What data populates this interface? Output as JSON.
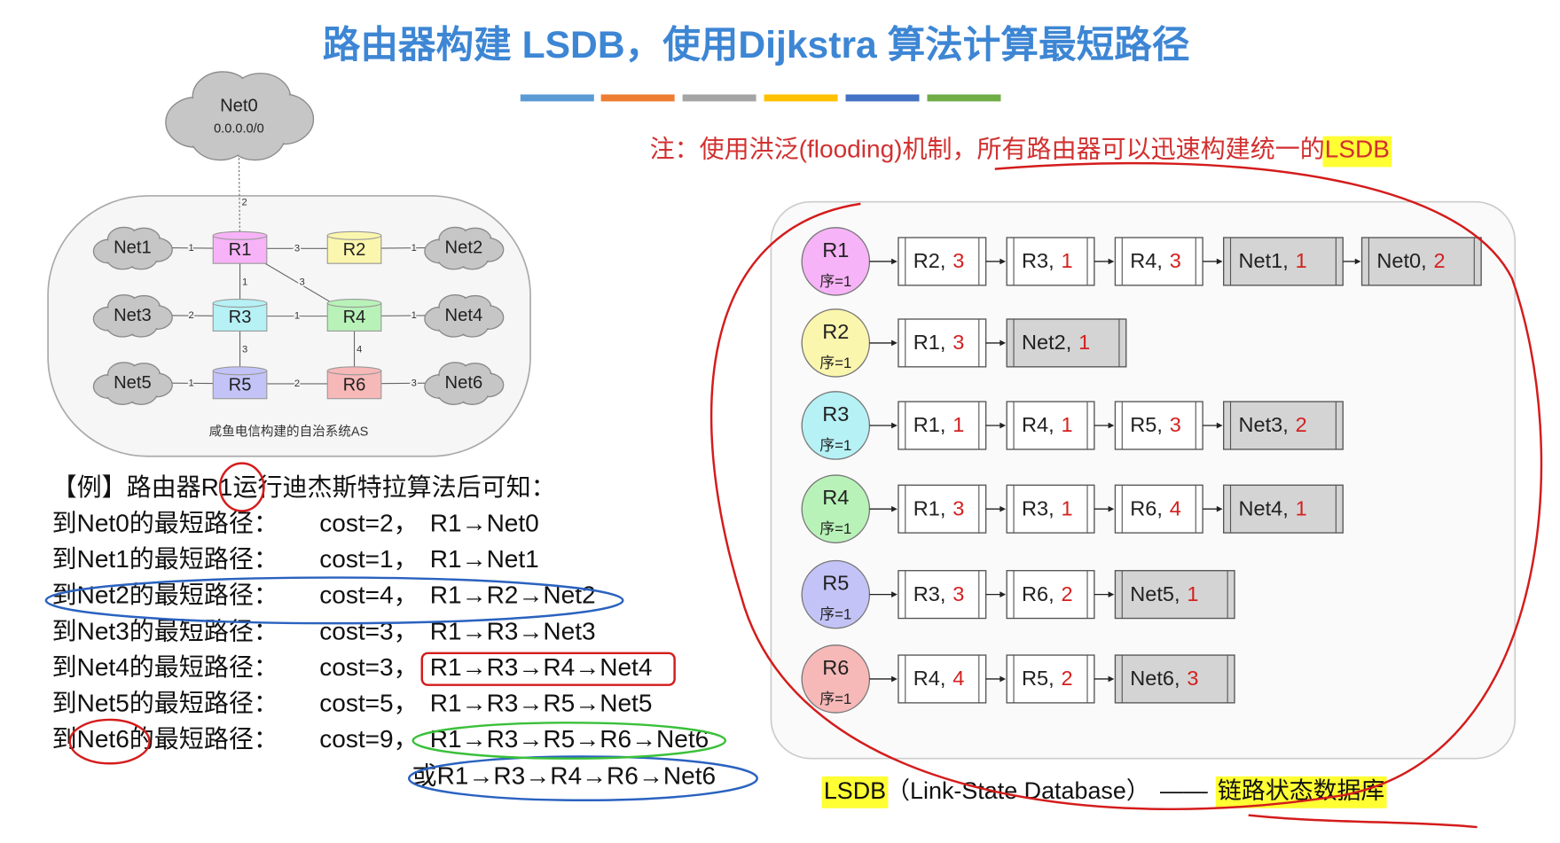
{
  "header": {
    "title": "路由器构建 LSDB，使用Dijkstra 算法计算最短路径"
  },
  "note": {
    "text": "注：使用洪泛(flooding)机制，所有路由器可以迅速构建统一的",
    "highlight": "LSDB"
  },
  "topology": {
    "caption": "咸鱼电信构建的自治系统AS",
    "nodes": [
      {
        "label": "Net0",
        "sub": "0.0.0.0/0"
      },
      {
        "label": "Net1"
      },
      {
        "label": "R1",
        "color": "#f7b3f7"
      },
      {
        "label": "R2",
        "color": "#fbf6ad"
      },
      {
        "label": "Net2"
      },
      {
        "label": "Net3"
      },
      {
        "label": "R3",
        "color": "#b5f1f5"
      },
      {
        "label": "R4",
        "color": "#b8f2b8"
      },
      {
        "label": "Net4"
      },
      {
        "label": "Net5"
      },
      {
        "label": "R5",
        "color": "#c3c3f7"
      },
      {
        "label": "R6",
        "color": "#f7b8b8"
      },
      {
        "label": "Net6"
      }
    ],
    "links": [
      {
        "cost": 2
      },
      {
        "cost": 1
      },
      {
        "cost": 3
      },
      {
        "cost": 1
      },
      {
        "cost": 1
      },
      {
        "cost": 3
      },
      {
        "cost": 2
      },
      {
        "cost": 1
      },
      {
        "cost": 1
      },
      {
        "cost": 3
      },
      {
        "cost": 4
      },
      {
        "cost": 1
      },
      {
        "cost": 2
      },
      {
        "cost": 3
      }
    ]
  },
  "example": {
    "heading": "【例】路由器R1运行迪杰斯特拉算法后可知：",
    "lines": [
      {
        "dest": "到Net0的最短路径：",
        "cost": "cost=2，",
        "path": "R1→Net0"
      },
      {
        "dest": "到Net1的最短路径：",
        "cost": "cost=1，",
        "path": "R1→Net1"
      },
      {
        "dest": "到Net2的最短路径：",
        "cost": "cost=4，",
        "path": "R1→R2→Net2"
      },
      {
        "dest": "到Net3的最短路径：",
        "cost": "cost=3，",
        "path": "R1→R3→Net3"
      },
      {
        "dest": "到Net4的最短路径：",
        "cost": "cost=3，",
        "path": "R1→R3→R4→Net4"
      },
      {
        "dest": "到Net5的最短路径：",
        "cost": "cost=5，",
        "path": "R1→R3→R5→Net5"
      },
      {
        "dest": "到Net6的最短路径：",
        "cost": "cost=9，",
        "path": "R1→R3→R5→R6→Net6"
      }
    ],
    "alternative": "或R1→R3→R4→R6→Net6"
  },
  "lsdb": {
    "rows": [
      {
        "router": "R1",
        "seq": "序=1",
        "color": "#f7b3f7",
        "entries": [
          {
            "node": "R2,",
            "cost": 3,
            "fill": "#ffffff"
          },
          {
            "node": "R3,",
            "cost": 1,
            "fill": "#ffffff"
          },
          {
            "node": "R4,",
            "cost": 3,
            "fill": "#ffffff"
          },
          {
            "node": "Net1,",
            "cost": 1,
            "fill": "#d4d4d4"
          },
          {
            "node": "Net0,",
            "cost": 2,
            "fill": "#d4d4d4"
          }
        ]
      },
      {
        "router": "R2",
        "seq": "序=1",
        "color": "#fbf6ad",
        "entries": [
          {
            "node": "R1,",
            "cost": 3,
            "fill": "#ffffff"
          },
          {
            "node": "Net2,",
            "cost": 1,
            "fill": "#d4d4d4"
          }
        ]
      },
      {
        "router": "R3",
        "seq": "序=1",
        "color": "#b5f1f5",
        "entries": [
          {
            "node": "R1,",
            "cost": 1,
            "fill": "#ffffff"
          },
          {
            "node": "R4,",
            "cost": 1,
            "fill": "#ffffff"
          },
          {
            "node": "R5,",
            "cost": 3,
            "fill": "#ffffff"
          },
          {
            "node": "Net3,",
            "cost": 2,
            "fill": "#d4d4d4"
          }
        ]
      },
      {
        "router": "R4",
        "seq": "序=1",
        "color": "#b8f2b8",
        "entries": [
          {
            "node": "R1,",
            "cost": 3,
            "fill": "#ffffff"
          },
          {
            "node": "R3,",
            "cost": 1,
            "fill": "#ffffff"
          },
          {
            "node": "R6,",
            "cost": 4,
            "fill": "#ffffff"
          },
          {
            "node": "Net4,",
            "cost": 1,
            "fill": "#d4d4d4"
          }
        ]
      },
      {
        "router": "R5",
        "seq": "序=1",
        "color": "#c3c3f7",
        "entries": [
          {
            "node": "R3,",
            "cost": 3,
            "fill": "#ffffff"
          },
          {
            "node": "R6,",
            "cost": 2,
            "fill": "#ffffff"
          },
          {
            "node": "Net5,",
            "cost": 1,
            "fill": "#d4d4d4"
          }
        ]
      },
      {
        "router": "R6",
        "seq": "序=1",
        "color": "#f7b8b8",
        "entries": [
          {
            "node": "R4,",
            "cost": 4,
            "fill": "#ffffff"
          },
          {
            "node": "R5,",
            "cost": 2,
            "fill": "#ffffff"
          },
          {
            "node": "Net6,",
            "cost": 3,
            "fill": "#d4d4d4"
          }
        ]
      }
    ]
  },
  "footer": {
    "term": "LSDB",
    "expansion": "（Link-State Database）",
    "dash": "——",
    "meaning": "链路状态数据库"
  }
}
